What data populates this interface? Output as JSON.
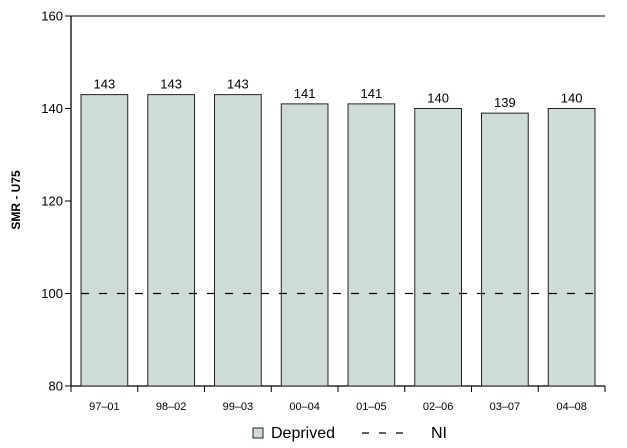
{
  "chart_data": {
    "type": "bar",
    "categories": [
      "97–01",
      "98–02",
      "99–03",
      "00–04",
      "01–05",
      "02–06",
      "03–07",
      "04–08"
    ],
    "series": [
      {
        "name": "Deprived",
        "values": [
          143,
          143,
          143,
          141,
          141,
          140,
          139,
          140
        ],
        "color": "#cfdcd6"
      },
      {
        "name": "NI",
        "values": [
          100,
          100,
          100,
          100,
          100,
          100,
          100,
          100
        ],
        "style": "dashed",
        "color": "#000000"
      }
    ],
    "data_labels": [
      "143",
      "143",
      "143",
      "141",
      "141",
      "140",
      "139",
      "140"
    ],
    "ylabel": "SMR - U75",
    "xlabel": "",
    "ylim": [
      80,
      160
    ],
    "yticks": [
      80,
      100,
      120,
      140,
      160
    ],
    "grid": false,
    "legend_position": "bottom-center",
    "legend": [
      {
        "label": "Deprived",
        "marker": "square"
      },
      {
        "label": "NI",
        "marker": "dash"
      }
    ],
    "bar_edge_color": "#222222"
  }
}
